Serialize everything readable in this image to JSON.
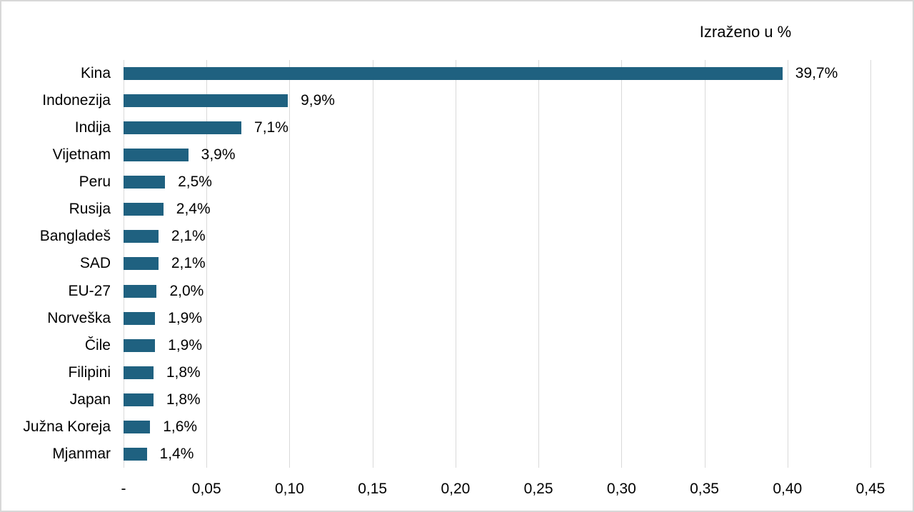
{
  "chart_data": {
    "type": "bar",
    "orientation": "horizontal",
    "title": "Izraženo u %",
    "categories": [
      "Kina",
      "Indonezija",
      "Indija",
      "Vijetnam",
      "Peru",
      "Rusija",
      "Bangladeš",
      "SAD",
      "EU-27",
      "Norveška",
      "Čile",
      "Filipini",
      "Japan",
      "Južna Koreja",
      "Mjanmar"
    ],
    "values": [
      0.397,
      0.099,
      0.071,
      0.039,
      0.025,
      0.024,
      0.021,
      0.021,
      0.02,
      0.019,
      0.019,
      0.018,
      0.018,
      0.016,
      0.014
    ],
    "value_labels": [
      "39,7%",
      "9,9%",
      "7,1%",
      "3,9%",
      "2,5%",
      "2,4%",
      "2,1%",
      "2,1%",
      "2,0%",
      "1,9%",
      "1,9%",
      "1,8%",
      "1,8%",
      "1,6%",
      "1,4%"
    ],
    "x_ticks": [
      "-",
      "0,05",
      "0,10",
      "0,15",
      "0,20",
      "0,25",
      "0,30",
      "0,35",
      "0,40",
      "0,45"
    ],
    "xlim": [
      0,
      0.45
    ],
    "xlabel": "",
    "ylabel": "",
    "legend": "none",
    "grid": true,
    "colors": {
      "bar": "#1F6180",
      "gridline": "#d9d9d9",
      "text": "#000000",
      "frame_border": "#d8d8d8"
    }
  }
}
